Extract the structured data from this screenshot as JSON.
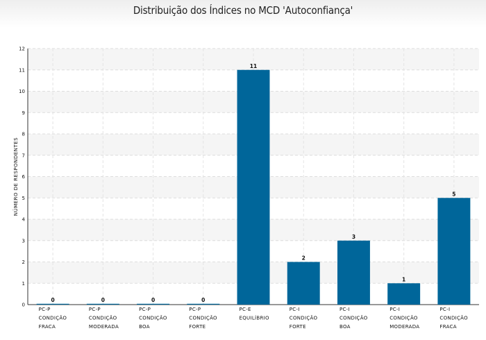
{
  "chart_data": {
    "type": "bar",
    "title": "Distribuição dos Índices no MCD 'Autoconfiança'",
    "ylabel": "NÚMERO DE RESPONDENTES",
    "xlabel": "",
    "ylim": [
      0,
      12
    ],
    "yticks": [
      0,
      1,
      2,
      3,
      4,
      5,
      6,
      7,
      8,
      9,
      10,
      11,
      12
    ],
    "grid": true,
    "categories": [
      [
        "PC-P",
        "CONDIÇÃO",
        "FRACA"
      ],
      [
        "PC-P",
        "CONDIÇÃO",
        "MODERADA"
      ],
      [
        "PC-P",
        "CONDIÇÃO",
        "BOA"
      ],
      [
        "PC-P",
        "CONDIÇÃO",
        "FORTE"
      ],
      [
        "PC-E",
        "EQUILÍBRIO"
      ],
      [
        "PC-I",
        "CONDIÇÃO",
        "FORTE"
      ],
      [
        "PC-I",
        "CONDIÇÃO",
        "BOA"
      ],
      [
        "PC-I",
        "CONDIÇÃO",
        "MODERADA"
      ],
      [
        "PC-I",
        "CONDIÇÃO",
        "FRACA"
      ]
    ],
    "values": [
      0,
      0,
      0,
      0,
      11,
      2,
      3,
      1,
      5
    ],
    "bar_color": "#00669a"
  }
}
